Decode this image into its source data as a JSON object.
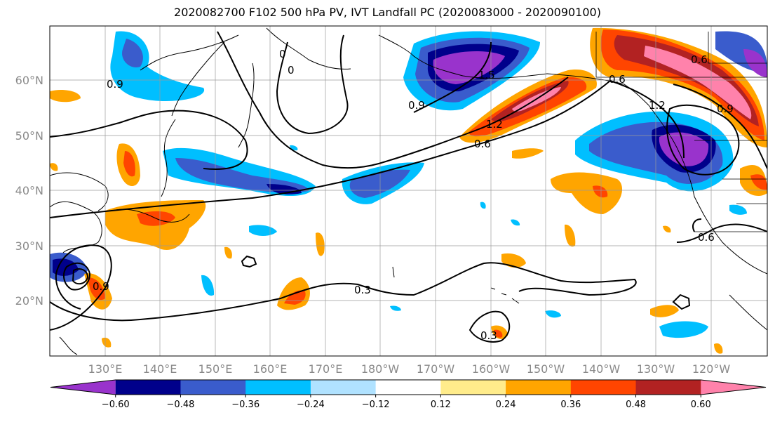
{
  "title": "2020082700 F102 500 hPa PV, IVT Landfall PC (2020083000 - 2020090100)",
  "lon_ticks": [
    "130°E",
    "140°E",
    "150°E",
    "160°E",
    "170°E",
    "180°W",
    "170°W",
    "160°W",
    "150°W",
    "140°W",
    "130°W",
    "120°W"
  ],
  "lat_ticks": [
    "60°N",
    "50°N",
    "40°N",
    "30°N",
    "20°N"
  ],
  "colorbar": {
    "colors": [
      "#9933cc",
      "#00008b",
      "#3a5ccc",
      "#00bfff",
      "#b0e2ff",
      "#ffffff",
      "#ffec8b",
      "#ffa500",
      "#ff4500",
      "#b22222",
      "#ff82ab"
    ],
    "labels": [
      "−0.60",
      "−0.48",
      "−0.36",
      "−0.24",
      "−0.12",
      "0.12",
      "0.24",
      "0.36",
      "0.48",
      "0.60"
    ]
  },
  "contour_labels": [
    "0.9",
    "0",
    "0",
    "0.9",
    "0.6",
    "1.5",
    "1.2",
    "0.6",
    "0.6",
    "1.2",
    "0.9",
    "0.6",
    "0.3",
    "0.3",
    "0.9"
  ]
}
